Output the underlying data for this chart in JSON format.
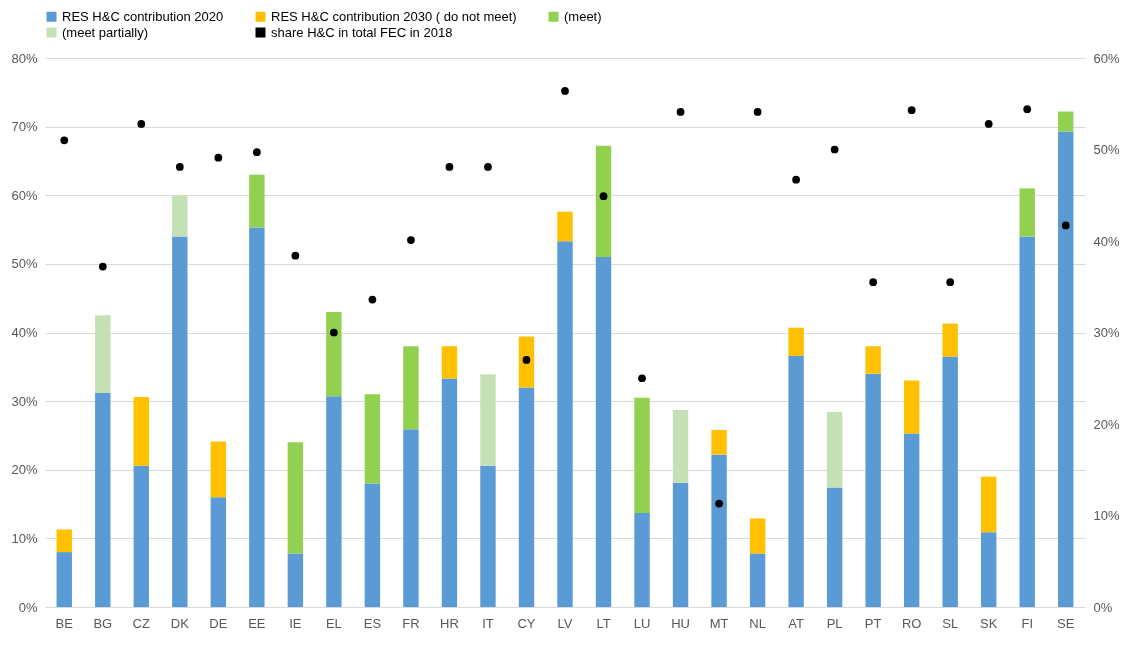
{
  "chart_data": {
    "type": "bar",
    "stacked": true,
    "categories": [
      "BE",
      "BG",
      "CZ",
      "DK",
      "DE",
      "EE",
      "IE",
      "EL",
      "ES",
      "FR",
      "HR",
      "IT",
      "CY",
      "LV",
      "LT",
      "LU",
      "HU",
      "MT",
      "NL",
      "AT",
      "PL",
      "PT",
      "RO",
      "SL",
      "SK",
      "FI",
      "SE"
    ],
    "series": [
      {
        "name": "RES H&C contribution 2020",
        "color": "#5b9bd5",
        "values": [
          8,
          31.2,
          20.6,
          54,
          16,
          55.3,
          7.8,
          30.7,
          18,
          25.9,
          33.3,
          20.6,
          32,
          53.3,
          51,
          13.7,
          18.1,
          22.2,
          7.8,
          36.6,
          17.4,
          34,
          25.3,
          36.5,
          10.9,
          54,
          69.3
        ]
      },
      {
        "name": "RES H&C contribution 2030 ( do not meet)",
        "color": "#ffc000",
        "values": [
          3.3,
          null,
          10,
          null,
          8.1,
          null,
          null,
          null,
          null,
          null,
          4.7,
          null,
          7.4,
          4.3,
          null,
          null,
          null,
          3.6,
          5.1,
          4.1,
          null,
          4,
          7.7,
          4.8,
          8.1,
          null,
          null
        ]
      },
      {
        "name": "(meet)",
        "color": "#92d050",
        "values": [
          null,
          null,
          null,
          null,
          null,
          7.7,
          16.2,
          12.3,
          13,
          12.1,
          null,
          null,
          null,
          null,
          16.2,
          16.8,
          null,
          null,
          null,
          null,
          null,
          null,
          null,
          null,
          null,
          7,
          2.9
        ]
      },
      {
        "name": "(meet partially)",
        "color": "#c5e0b4",
        "values": [
          null,
          11.3,
          null,
          6,
          null,
          null,
          null,
          null,
          null,
          null,
          null,
          13.3,
          null,
          null,
          null,
          null,
          10.6,
          null,
          null,
          null,
          11,
          null,
          null,
          null,
          null,
          null,
          null
        ]
      },
      {
        "name": "share H&C in total FEC in 2018",
        "type": "scatter",
        "axis": "y2",
        "marker": "circle",
        "color": "#000000",
        "values": [
          51,
          37.2,
          52.8,
          48.1,
          49.1,
          49.7,
          38.4,
          30,
          33.6,
          40.1,
          48.1,
          48.1,
          27,
          56.4,
          44.9,
          25,
          54.1,
          11.3,
          54.1,
          46.7,
          50,
          35.5,
          54.3,
          35.5,
          52.8,
          54.4,
          41.7
        ]
      }
    ],
    "ylim": [
      0,
      80
    ],
    "yticks": [
      {
        "value": 0,
        "label": "0%"
      },
      {
        "value": 10,
        "label": "10%"
      },
      {
        "value": 20,
        "label": "20%"
      },
      {
        "value": 30,
        "label": "30%"
      },
      {
        "value": 40,
        "label": "40%"
      },
      {
        "value": 50,
        "label": "50%"
      },
      {
        "value": 60,
        "label": "60%"
      },
      {
        "value": 70,
        "label": "70%"
      },
      {
        "value": 80,
        "label": "80%"
      }
    ],
    "y2lim": [
      0,
      60
    ],
    "y2ticks": [
      {
        "value": 0,
        "label": "0%"
      },
      {
        "value": 10,
        "label": "10%"
      },
      {
        "value": 20,
        "label": "20%"
      },
      {
        "value": 30,
        "label": "30%"
      },
      {
        "value": 40,
        "label": "40%"
      },
      {
        "value": 50,
        "label": "50%"
      },
      {
        "value": 60,
        "label": "60%"
      }
    ],
    "grid": "y",
    "legend": "top"
  }
}
